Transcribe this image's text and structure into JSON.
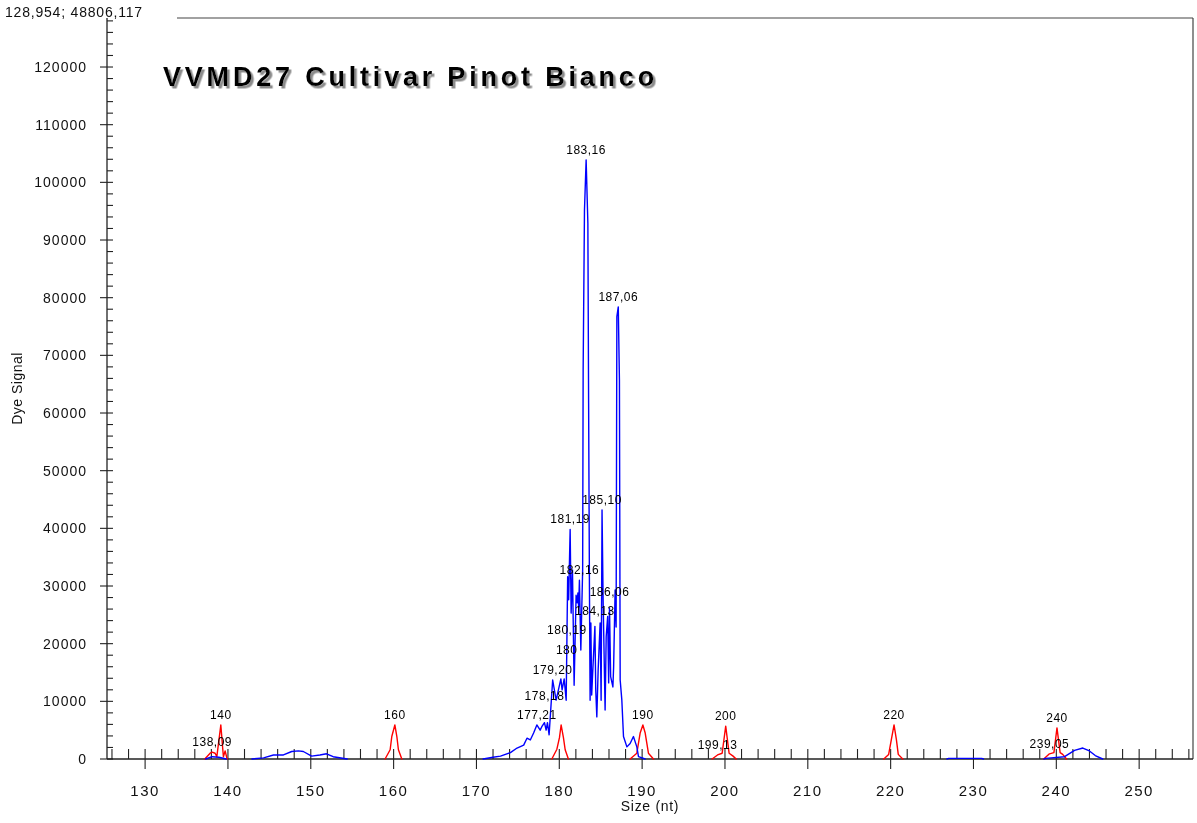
{
  "chart_data": {
    "type": "line",
    "title": "VVMD27 Cultivar Pinot Bianco",
    "xlabel": "Size (nt)",
    "ylabel": "Dye Signal",
    "line_style": "solid",
    "xlim": [
      125.4,
      256.5
    ],
    "ylim": [
      0,
      128500
    ],
    "xticks": [
      {
        "value": 126,
        "label": null
      },
      {
        "value": 128,
        "label": null
      },
      130,
      {
        "value": 132,
        "label": null
      },
      {
        "value": 134,
        "label": null
      },
      {
        "value": 136,
        "label": null
      },
      {
        "value": 138,
        "label": null
      },
      140,
      {
        "value": 142,
        "label": null
      },
      {
        "value": 144,
        "label": null
      },
      {
        "value": 146,
        "label": null
      },
      {
        "value": 148,
        "label": null
      },
      150,
      {
        "value": 152,
        "label": null
      },
      {
        "value": 154,
        "label": null
      },
      {
        "value": 156,
        "label": null
      },
      {
        "value": 158,
        "label": null
      },
      160,
      {
        "value": 162,
        "label": null
      },
      {
        "value": 164,
        "label": null
      },
      {
        "value": 166,
        "label": null
      },
      {
        "value": 168,
        "label": null
      },
      170,
      {
        "value": 172,
        "label": null
      },
      {
        "value": 174,
        "label": null
      },
      {
        "value": 176,
        "label": null
      },
      {
        "value": 178,
        "label": null
      },
      180,
      {
        "value": 182,
        "label": null
      },
      {
        "value": 184,
        "label": null
      },
      {
        "value": 186,
        "label": null
      },
      {
        "value": 188,
        "label": null
      },
      190,
      {
        "value": 192,
        "label": null
      },
      {
        "value": 194,
        "label": null
      },
      {
        "value": 196,
        "label": null
      },
      {
        "value": 198,
        "label": null
      },
      200,
      {
        "value": 202,
        "label": null
      },
      {
        "value": 204,
        "label": null
      },
      {
        "value": 206,
        "label": null
      },
      {
        "value": 208,
        "label": null
      },
      210,
      {
        "value": 212,
        "label": null
      },
      {
        "value": 214,
        "label": null
      },
      {
        "value": 216,
        "label": null
      },
      {
        "value": 218,
        "label": null
      },
      220,
      {
        "value": 222,
        "label": null
      },
      {
        "value": 224,
        "label": null
      },
      {
        "value": 226,
        "label": null
      },
      {
        "value": 228,
        "label": null
      },
      230,
      {
        "value": 232,
        "label": null
      },
      {
        "value": 234,
        "label": null
      },
      {
        "value": 236,
        "label": null
      },
      {
        "value": 238,
        "label": null
      },
      240,
      {
        "value": 242,
        "label": null
      },
      {
        "value": 244,
        "label": null
      },
      {
        "value": 246,
        "label": null
      },
      {
        "value": 248,
        "label": null
      },
      250,
      {
        "value": 252,
        "label": null
      },
      {
        "value": 254,
        "label": null
      },
      {
        "value": 256,
        "label": null
      }
    ],
    "yticks": [
      0,
      {
        "value": 2000,
        "label": null
      },
      {
        "value": 4000,
        "label": null
      },
      {
        "value": 6000,
        "label": null
      },
      {
        "value": 8000,
        "label": null
      },
      10000,
      {
        "value": 12000,
        "label": null
      },
      {
        "value": 14000,
        "label": null
      },
      {
        "value": 16000,
        "label": null
      },
      {
        "value": 18000,
        "label": null
      },
      20000,
      {
        "value": 22000,
        "label": null
      },
      {
        "value": 24000,
        "label": null
      },
      {
        "value": 26000,
        "label": null
      },
      {
        "value": 28000,
        "label": null
      },
      30000,
      {
        "value": 32000,
        "label": null
      },
      {
        "value": 34000,
        "label": null
      },
      {
        "value": 36000,
        "label": null
      },
      {
        "value": 38000,
        "label": null
      },
      40000,
      {
        "value": 42000,
        "label": null
      },
      {
        "value": 44000,
        "label": null
      },
      {
        "value": 46000,
        "label": null
      },
      {
        "value": 48000,
        "label": null
      },
      50000,
      {
        "value": 52000,
        "label": null
      },
      {
        "value": 54000,
        "label": null
      },
      {
        "value": 56000,
        "label": null
      },
      {
        "value": 58000,
        "label": null
      },
      60000,
      {
        "value": 62000,
        "label": null
      },
      {
        "value": 64000,
        "label": null
      },
      {
        "value": 66000,
        "label": null
      },
      {
        "value": 68000,
        "label": null
      },
      70000,
      {
        "value": 72000,
        "label": null
      },
      {
        "value": 74000,
        "label": null
      },
      {
        "value": 76000,
        "label": null
      },
      {
        "value": 78000,
        "label": null
      },
      80000,
      {
        "value": 82000,
        "label": null
      },
      {
        "value": 84000,
        "label": null
      },
      {
        "value": 86000,
        "label": null
      },
      {
        "value": 88000,
        "label": null
      },
      90000,
      {
        "value": 92000,
        "label": null
      },
      {
        "value": 94000,
        "label": null
      },
      {
        "value": 96000,
        "label": null
      },
      {
        "value": 98000,
        "label": null
      },
      100000,
      {
        "value": 102000,
        "label": null
      },
      {
        "value": 104000,
        "label": null
      },
      {
        "value": 106000,
        "label": null
      },
      {
        "value": 108000,
        "label": null
      },
      110000,
      {
        "value": 112000,
        "label": null
      },
      {
        "value": 114000,
        "label": null
      },
      {
        "value": 116000,
        "label": null
      },
      {
        "value": 118000,
        "label": null
      },
      120000,
      {
        "value": 122000,
        "label": null
      },
      {
        "value": 124000,
        "label": null
      },
      {
        "value": 126000,
        "label": null
      },
      {
        "value": 128000,
        "label": null
      }
    ],
    "series": [
      {
        "color": "#ff0000",
        "x": [
          137.2,
          137.85,
          138.1,
          138.45,
          138.66,
          139.14,
          139.45,
          139.66,
          139.9,
          150,
          158.97,
          159.58,
          159.78,
          160.15,
          160.39,
          160.58,
          160.99,
          170,
          179.1,
          179.71,
          180.02,
          180.22,
          180.5,
          180.71,
          181.1,
          185,
          188.55,
          189.36,
          189.76,
          190.09,
          190.37,
          190.76,
          191.37,
          195,
          198.45,
          199.1,
          199.66,
          200.09,
          200.5,
          200.98,
          201.35,
          210,
          219.17,
          219.76,
          220.09,
          220.41,
          220.69,
          220.92,
          221.46,
          230,
          238.48,
          239.17,
          239.71,
          240.08,
          240.46,
          240.77,
          241.23
        ],
        "values": [
          0,
          1000,
          1200,
          1000,
          400,
          5900,
          400,
          1400,
          0,
          null,
          0,
          1600,
          3900,
          5900,
          3900,
          1600,
          0,
          null,
          0,
          1700,
          3700,
          5900,
          3700,
          1600,
          0,
          null,
          0,
          1000,
          4500,
          5900,
          4500,
          1000,
          0,
          null,
          0,
          700,
          1000,
          5700,
          1000,
          500,
          0,
          null,
          0,
          800,
          3400,
          5900,
          3400,
          800,
          0,
          null,
          0,
          900,
          1100,
          5400,
          1100,
          800,
          0
        ]
      },
      {
        "color": "#0000ff",
        "x": [
          137.3,
          138.1,
          138.9,
          139.8,
          141.4,
          142.9,
          144.3,
          145.5,
          146.7,
          147.7,
          148.5,
          149.1,
          150.1,
          151.1,
          151.9,
          152.7,
          154.4,
          162.0,
          170.8,
          172.0,
          172.9,
          174.1,
          174.9,
          175.7,
          176.1,
          176.5,
          176.9,
          177.29,
          177.69,
          177.89,
          178.21,
          178.41,
          178.57,
          178.77,
          179.2,
          179.62,
          180.19,
          180.34,
          180.59,
          180.83,
          180.89,
          180.92,
          181.01,
          181.13,
          181.31,
          181.43,
          181.59,
          181.79,
          182.03,
          182.16,
          182.25,
          182.34,
          182.43,
          182.6,
          182.82,
          182.88,
          183.04,
          183.24,
          183.45,
          183.54,
          183.64,
          183.72,
          183.81,
          183.91,
          184.03,
          184.3,
          184.4,
          184.53,
          184.69,
          184.93,
          185.05,
          185.16,
          185.29,
          185.53,
          185.66,
          185.84,
          185.96,
          186.06,
          186.2,
          186.47,
          186.56,
          186.74,
          186.86,
          186.95,
          187.12,
          187.26,
          187.35,
          187.55,
          187.75,
          188.16,
          188.55,
          188.95,
          189.36,
          189.56,
          190.37,
          205.0,
          226.8,
          227.0,
          231.0,
          231.2,
          235.0,
          238.5,
          238.7,
          241.0,
          242.2,
          243.2,
          244.0,
          244.7,
          245.6
        ],
        "values": [
          0,
          400,
          300,
          0,
          null,
          0,
          200,
          700,
          700,
          1300,
          1400,
          1300,
          500,
          700,
          900,
          400,
          0,
          null,
          0,
          300,
          500,
          1100,
          1900,
          2400,
          3600,
          3300,
          4500,
          5900,
          5000,
          5600,
          6300,
          5000,
          6300,
          4200,
          13700,
          10200,
          13900,
          12000,
          13900,
          10200,
          17200,
          20700,
          31600,
          27600,
          39800,
          25300,
          32800,
          12800,
          28400,
          27100,
          28800,
          26400,
          31000,
          18900,
          32800,
          67500,
          95200,
          103900,
          92900,
          61700,
          29800,
          10200,
          23600,
          11100,
          14900,
          23000,
          12000,
          7300,
          15400,
          23600,
          10200,
          43200,
          27600,
          8500,
          21200,
          24700,
          13200,
          26200,
          14300,
          12500,
          16000,
          29300,
          22900,
          76700,
          78400,
          65700,
          13700,
          10200,
          3900,
          2100,
          2700,
          3900,
          2100,
          400,
          0,
          null,
          0,
          100,
          100,
          0,
          null,
          0,
          100,
          400,
          1500,
          1900,
          1400,
          600,
          0
        ]
      }
    ],
    "annotations": [
      "128,954; 48806,117",
      {
        "text": "138,09",
        "x": 138.1,
        "y": 1200
      },
      {
        "text": "140",
        "x": 139.14,
        "y": 5900
      },
      {
        "text": "160",
        "x": 160.15,
        "y": 5900
      },
      {
        "text": "177,21",
        "x": 177.29,
        "y": 5900
      },
      {
        "text": "178,18",
        "x": 178.21,
        "y": 6300
      },
      {
        "text": "179,20",
        "x": 179.2,
        "y": 13700
      },
      {
        "text": "180",
        "x": 180.89,
        "y": 17200
      },
      {
        "text": "180,19",
        "x": 180.92,
        "y": 20700
      },
      {
        "text": "181,19",
        "x": 181.31,
        "y": 39800
      },
      {
        "text": "182,16",
        "x": 182.43,
        "y": 31000
      },
      {
        "text": "183,16",
        "x": 183.24,
        "y": 103900
      },
      {
        "text": "184,13",
        "x": 184.3,
        "y": 23000
      },
      {
        "text": "185,10",
        "x": 185.16,
        "y": 43200
      },
      {
        "text": "186,06",
        "x": 186.06,
        "y": 26200
      },
      {
        "text": "187,06",
        "x": 187.12,
        "y": 78400
      },
      {
        "text": "190",
        "x": 190.09,
        "y": 5900
      },
      {
        "text": "199,13",
        "x": 199.1,
        "y": 700
      },
      {
        "text": "200",
        "x": 200.09,
        "y": 5700
      },
      {
        "text": "220",
        "x": 220.41,
        "y": 5900
      },
      {
        "text": "239,05",
        "x": 239.17,
        "y": 900
      },
      {
        "text": "240",
        "x": 240.08,
        "y": 5400
      }
    ]
  }
}
